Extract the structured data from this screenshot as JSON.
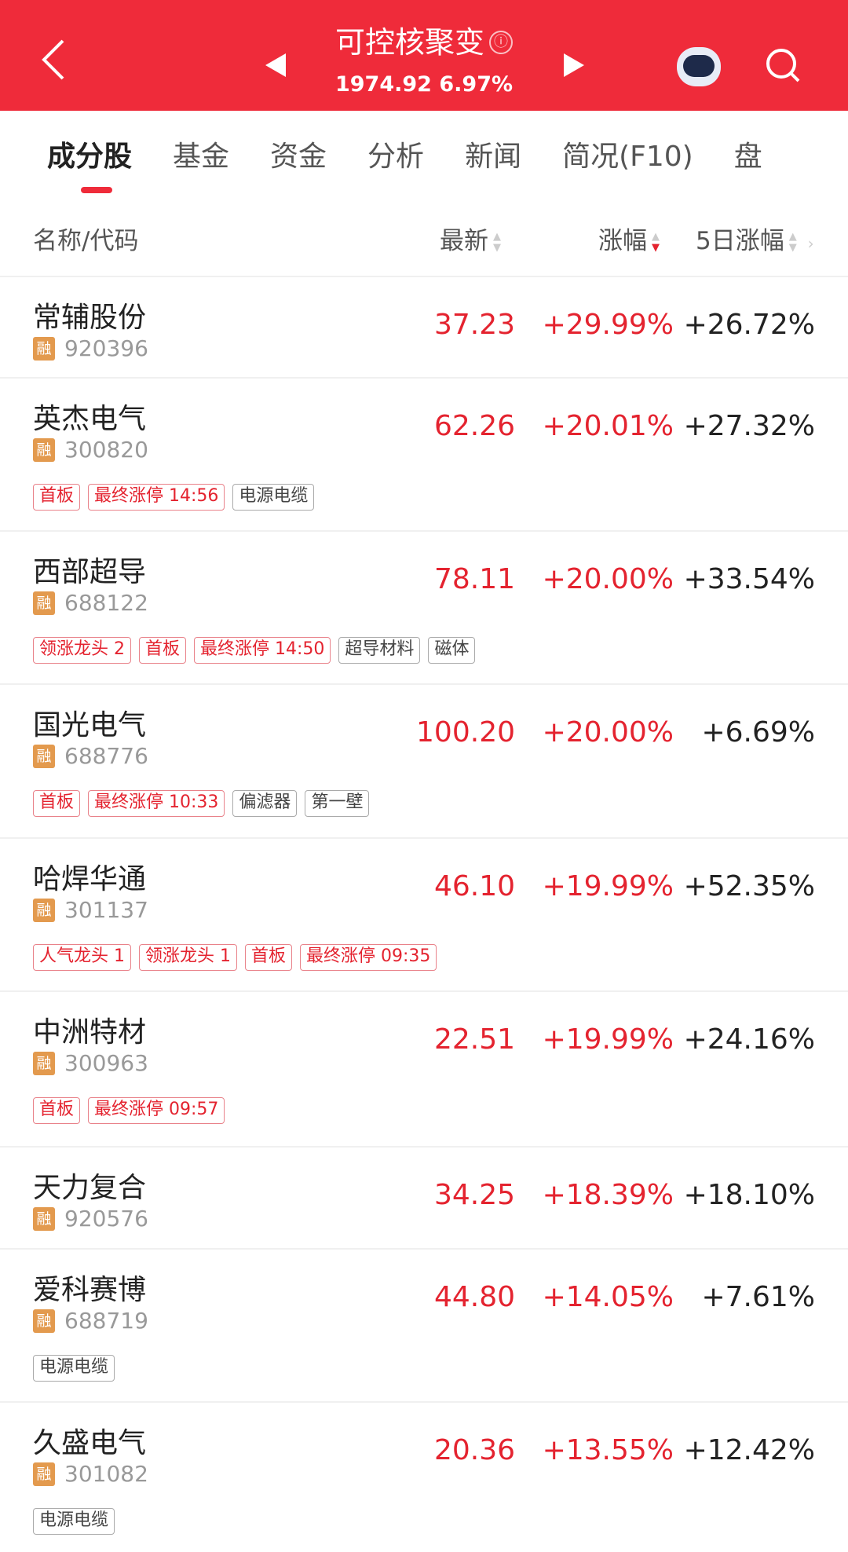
{
  "header": {
    "title": "可控核聚变",
    "info_icon": "ⓘ",
    "value": "1974.92",
    "change": "6.97%",
    "color": "#ef2b3a"
  },
  "tabs": [
    {
      "label": "成分股"
    },
    {
      "label": "基金"
    },
    {
      "label": "资金"
    },
    {
      "label": "分析"
    },
    {
      "label": "新闻"
    },
    {
      "label": "简况(F10)"
    },
    {
      "label": "盘"
    }
  ],
  "columns": {
    "name": "名称/代码",
    "price": "最新",
    "change": "涨幅",
    "change5d": "5日涨幅",
    "sort_active": "涨幅 descending"
  },
  "badge": "融",
  "rows": [
    {
      "name": "常辅股份",
      "code": "920396",
      "price": "37.23",
      "change": "+29.99%",
      "change5d": "+26.72%",
      "tags": []
    },
    {
      "name": "英杰电气",
      "code": "300820",
      "price": "62.26",
      "change": "+20.01%",
      "change5d": "+27.32%",
      "tags": [
        {
          "t": "首板",
          "red": true
        },
        {
          "t": "最终涨停 14:56",
          "red": true
        },
        {
          "t": "电源电缆",
          "red": false
        }
      ]
    },
    {
      "name": "西部超导",
      "code": "688122",
      "price": "78.11",
      "change": "+20.00%",
      "change5d": "+33.54%",
      "tags": [
        {
          "t": "领涨龙头 2",
          "red": true
        },
        {
          "t": "首板",
          "red": true
        },
        {
          "t": "最终涨停 14:50",
          "red": true
        },
        {
          "t": "超导材料",
          "red": false
        },
        {
          "t": "磁体",
          "red": false
        }
      ]
    },
    {
      "name": "国光电气",
      "code": "688776",
      "price": "100.20",
      "change": "+20.00%",
      "change5d": "+6.69%",
      "tags": [
        {
          "t": "首板",
          "red": true
        },
        {
          "t": "最终涨停 10:33",
          "red": true
        },
        {
          "t": "偏滤器",
          "red": false
        },
        {
          "t": "第一壁",
          "red": false
        }
      ]
    },
    {
      "name": "哈焊华通",
      "code": "301137",
      "price": "46.10",
      "change": "+19.99%",
      "change5d": "+52.35%",
      "tags": [
        {
          "t": "人气龙头 1",
          "red": true
        },
        {
          "t": "领涨龙头 1",
          "red": true
        },
        {
          "t": "首板",
          "red": true
        },
        {
          "t": "最终涨停 09:35",
          "red": true
        }
      ]
    },
    {
      "name": "中洲特材",
      "code": "300963",
      "price": "22.51",
      "change": "+19.99%",
      "change5d": "+24.16%",
      "tags": [
        {
          "t": "首板",
          "red": true
        },
        {
          "t": "最终涨停 09:57",
          "red": true
        }
      ]
    },
    {
      "name": "天力复合",
      "code": "920576",
      "price": "34.25",
      "change": "+18.39%",
      "change5d": "+18.10%",
      "tags": []
    },
    {
      "name": "爱科赛博",
      "code": "688719",
      "price": "44.80",
      "change": "+14.05%",
      "change5d": "+7.61%",
      "tags": [
        {
          "t": "电源电缆",
          "red": false
        }
      ]
    },
    {
      "name": "久盛电气",
      "code": "301082",
      "price": "20.36",
      "change": "+13.55%",
      "change5d": "+12.42%",
      "tags": [
        {
          "t": "电源电缆",
          "red": false
        }
      ]
    }
  ]
}
